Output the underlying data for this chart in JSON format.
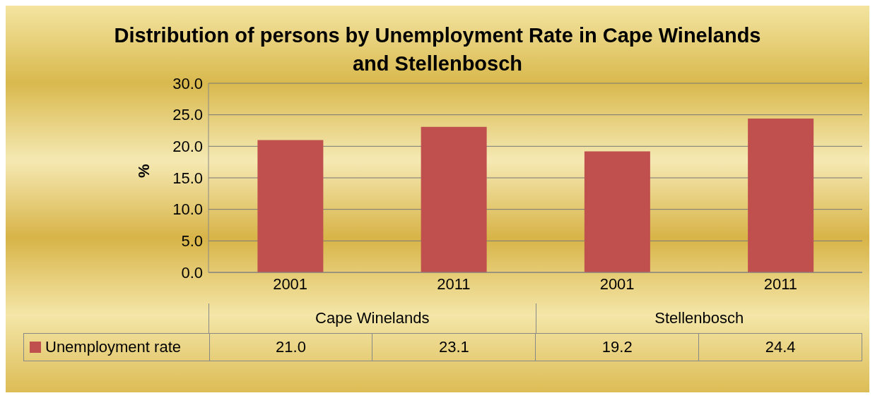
{
  "chart_data": {
    "type": "bar",
    "title": "Distribution of persons by Unemployment Rate in Cape Winelands and Stellenbosch",
    "ylabel": "%",
    "categories": [
      "2001",
      "2011",
      "2001",
      "2011"
    ],
    "annotations": [
      "Cape Winelands",
      "Stellenbosch"
    ],
    "series": [
      {
        "name": "Unemployment rate",
        "color": "#c0504d",
        "values": [
          21.0,
          23.1,
          19.2,
          24.4
        ],
        "value_labels": [
          "21.0",
          "23.1",
          "19.2",
          "24.4"
        ]
      }
    ],
    "ylim": [
      0,
      30
    ],
    "yticks": [
      {
        "value": 0,
        "label": "0.0"
      },
      {
        "value": 5,
        "label": "5.0"
      },
      {
        "value": 10,
        "label": "10.0"
      },
      {
        "value": 15,
        "label": "15.0"
      },
      {
        "value": 20,
        "label": "20.0"
      },
      {
        "value": 25,
        "label": "25.0"
      },
      {
        "value": 30,
        "label": "30.0"
      }
    ],
    "grid": "y",
    "legend": "bottom left"
  }
}
